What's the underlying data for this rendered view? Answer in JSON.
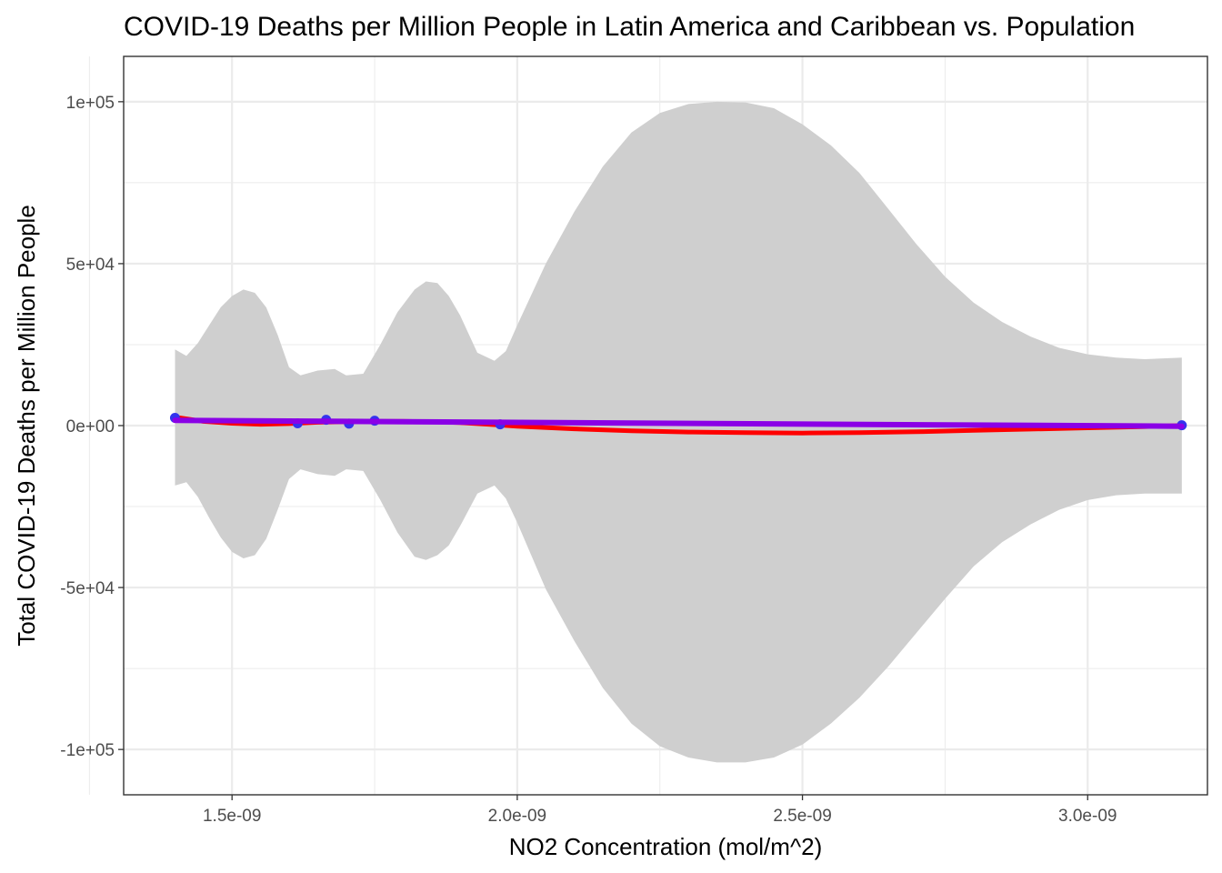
{
  "chart_data": {
    "type": "scatter",
    "title": "COVID-19 Deaths per Million People in Latin America and Caribbean vs. Population",
    "xlabel": "NO2 Concentration (mol/m^2)",
    "ylabel": "Total COVID-19 Deaths per Million People",
    "xlim": [
      1.31e-09,
      3.21e-09
    ],
    "ylim": [
      -114000,
      114000
    ],
    "x_ticks": [
      {
        "value": 1.5e-09,
        "label": "1.5e-09"
      },
      {
        "value": 2e-09,
        "label": "2.0e-09"
      },
      {
        "value": 2.5e-09,
        "label": "2.5e-09"
      },
      {
        "value": 3e-09,
        "label": "3.0e-09"
      }
    ],
    "y_ticks": [
      {
        "value": 100000,
        "label": "1e+05"
      },
      {
        "value": 50000,
        "label": "5e+04"
      },
      {
        "value": 0,
        "label": "0e+00"
      },
      {
        "value": -50000,
        "label": "-5e+04"
      },
      {
        "value": -100000,
        "label": "-1e+05"
      }
    ],
    "grid": true,
    "colors": {
      "points": "#3333ee",
      "loess_line": "#ff0000",
      "linear_line": "#8a00e6",
      "confidence_band": "#cfcfcf",
      "grid": "#ebebeb",
      "panel_border": "#333333"
    },
    "points": [
      {
        "x": 1.4e-09,
        "y": 2400
      },
      {
        "x": 1.615e-09,
        "y": 700
      },
      {
        "x": 1.665e-09,
        "y": 1800
      },
      {
        "x": 1.705e-09,
        "y": 600
      },
      {
        "x": 1.75e-09,
        "y": 1500
      },
      {
        "x": 1.97e-09,
        "y": 400
      },
      {
        "x": 3.165e-09,
        "y": 100
      }
    ],
    "smooth_line": {
      "x": [
        1.4e-09,
        1.45e-09,
        1.5e-09,
        1.55e-09,
        1.6e-09,
        1.65e-09,
        1.7e-09,
        1.75e-09,
        1.8e-09,
        1.85e-09,
        1.9e-09,
        1.95e-09,
        2e-09,
        2.1e-09,
        2.2e-09,
        2.3e-09,
        2.4e-09,
        2.5e-09,
        2.6e-09,
        2.7e-09,
        2.8e-09,
        2.9e-09,
        3e-09,
        3.1e-09,
        3.165e-09
      ],
      "y": [
        2600,
        1300,
        700,
        400,
        600,
        1000,
        1200,
        1300,
        1300,
        1200,
        900,
        400,
        -200,
        -1000,
        -1600,
        -2000,
        -2200,
        -2300,
        -2200,
        -1900,
        -1500,
        -1100,
        -700,
        -300,
        0
      ]
    },
    "confidence_band": {
      "x": [
        1.4e-09,
        1.42e-09,
        1.44e-09,
        1.46e-09,
        1.48e-09,
        1.5e-09,
        1.52e-09,
        1.54e-09,
        1.56e-09,
        1.58e-09,
        1.6e-09,
        1.62e-09,
        1.65e-09,
        1.68e-09,
        1.7e-09,
        1.73e-09,
        1.76e-09,
        1.79e-09,
        1.82e-09,
        1.84e-09,
        1.86e-09,
        1.88e-09,
        1.9e-09,
        1.93e-09,
        1.96e-09,
        1.98e-09,
        2e-09,
        2.05e-09,
        2.1e-09,
        2.15e-09,
        2.2e-09,
        2.25e-09,
        2.3e-09,
        2.35e-09,
        2.4e-09,
        2.45e-09,
        2.5e-09,
        2.55e-09,
        2.6e-09,
        2.65e-09,
        2.7e-09,
        2.75e-09,
        2.8e-09,
        2.85e-09,
        2.9e-09,
        2.95e-09,
        3e-09,
        3.05e-09,
        3.1e-09,
        3.165e-09
      ],
      "upper": [
        23500,
        21500,
        25500,
        31000,
        36500,
        40000,
        42000,
        41000,
        36500,
        28000,
        18000,
        15500,
        17000,
        17500,
        15500,
        16000,
        25000,
        35000,
        42000,
        44500,
        44000,
        40000,
        34000,
        22500,
        20000,
        23000,
        31000,
        50000,
        66000,
        80000,
        90500,
        96500,
        99300,
        100000,
        99800,
        98000,
        93000,
        86500,
        78000,
        67000,
        56000,
        46000,
        38000,
        32000,
        27500,
        24000,
        22000,
        21000,
        20500,
        21000
      ],
      "lower": [
        -18500,
        -17500,
        -22000,
        -28500,
        -34500,
        -39000,
        -41000,
        -40000,
        -35000,
        -26000,
        -16500,
        -13500,
        -15000,
        -15500,
        -13500,
        -14000,
        -23000,
        -33000,
        -40500,
        -41500,
        -40000,
        -37000,
        -31000,
        -21000,
        -18500,
        -22500,
        -30000,
        -50500,
        -66500,
        -81000,
        -92000,
        -99000,
        -102500,
        -104000,
        -104000,
        -102500,
        -98500,
        -92000,
        -84000,
        -74500,
        -64000,
        -53500,
        -43500,
        -36000,
        -30500,
        -26000,
        -23000,
        -21500,
        -21000,
        -21000
      ]
    },
    "linear_fit": {
      "x": [
        1.4e-09,
        3.165e-09
      ],
      "y": [
        1600,
        -200
      ]
    }
  }
}
